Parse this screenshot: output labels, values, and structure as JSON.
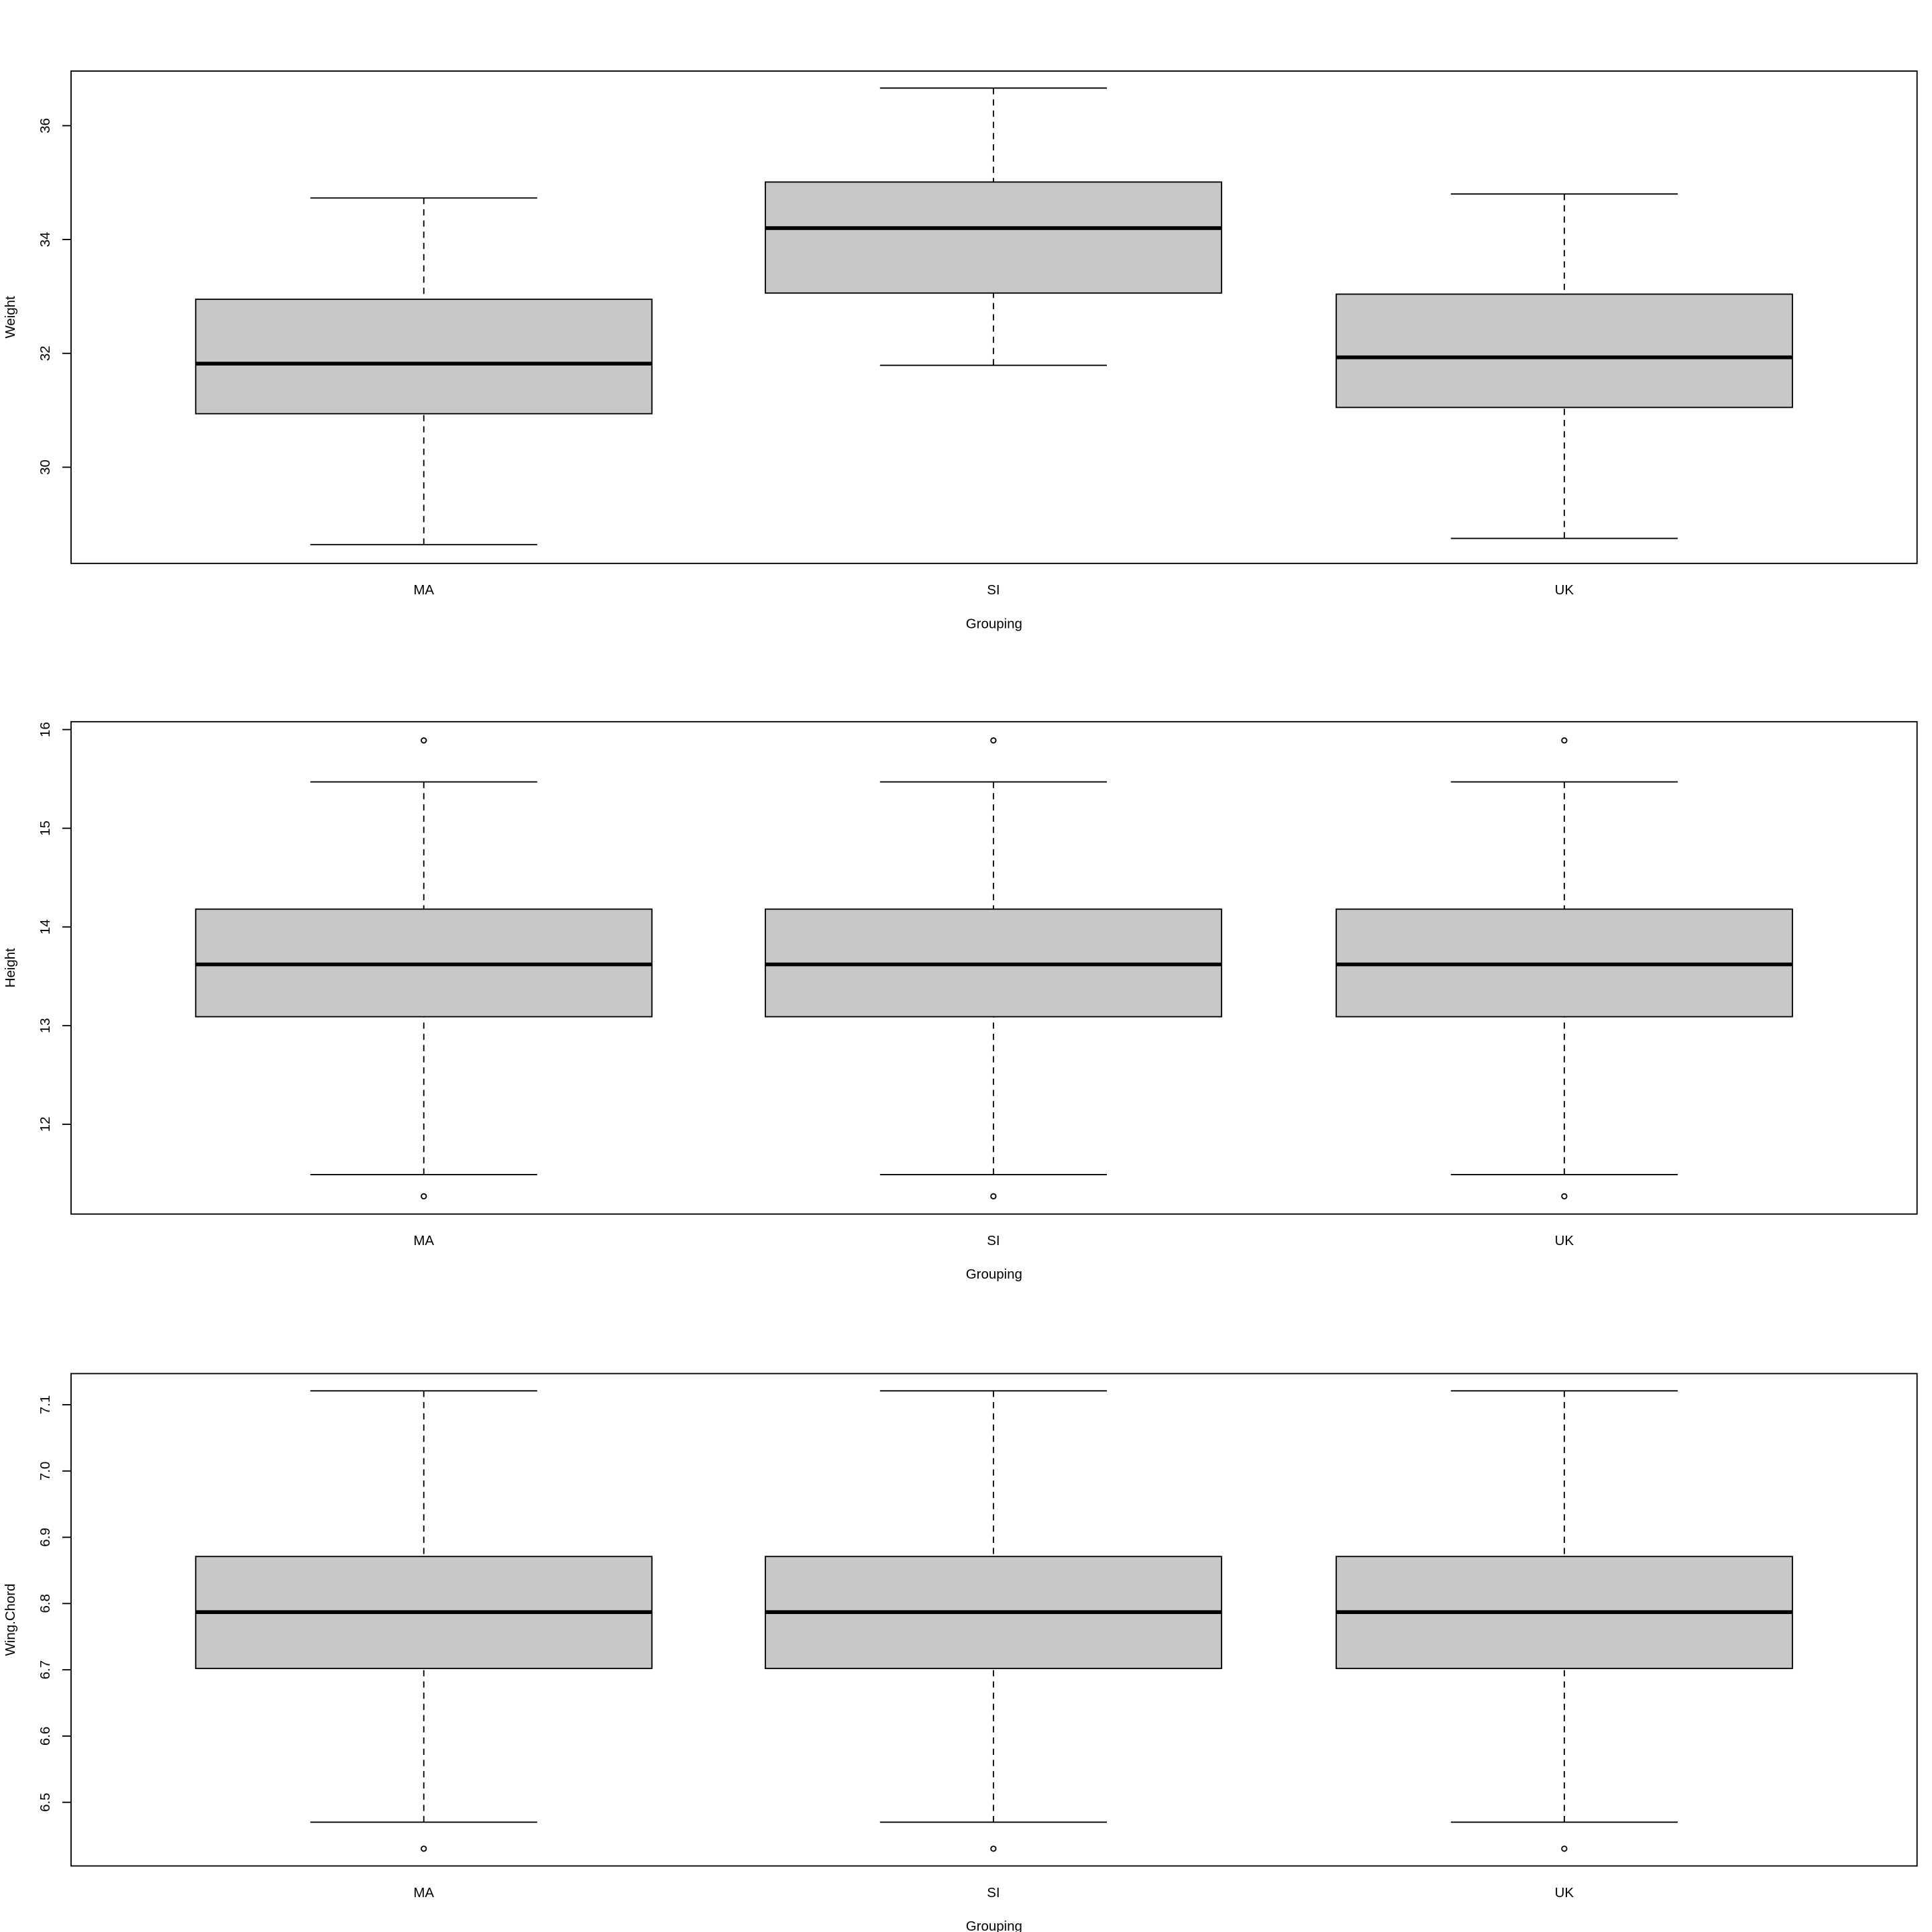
{
  "chart_data": [
    {
      "type": "box",
      "categories": [
        "MA",
        "SI",
        "UK"
      ],
      "xlabel": "Grouping",
      "ylabel": "Weight",
      "ylim": [
        28.31,
        36.96
      ],
      "yticks": [
        30,
        32,
        34,
        36
      ],
      "boxes": [
        {
          "min": 28.64,
          "q1": 30.94,
          "median": 31.82,
          "q3": 32.95,
          "max": 34.73,
          "outliers": []
        },
        {
          "min": 31.79,
          "q1": 33.06,
          "median": 34.2,
          "q3": 35.01,
          "max": 36.66,
          "outliers": []
        },
        {
          "min": 28.75,
          "q1": 31.05,
          "median": 31.93,
          "q3": 33.04,
          "max": 34.8,
          "outliers": []
        }
      ],
      "color": "#c8c8c8"
    },
    {
      "type": "box",
      "categories": [
        "MA",
        "SI",
        "UK"
      ],
      "xlabel": "Grouping",
      "ylabel": "Height",
      "ylim": [
        11.09,
        16.08
      ],
      "yticks": [
        12,
        13,
        14,
        15,
        16
      ],
      "boxes": [
        {
          "min": 11.49,
          "q1": 13.09,
          "median": 13.62,
          "q3": 14.18,
          "max": 15.47,
          "outliers": [
            15.89,
            11.27
          ]
        },
        {
          "min": 11.49,
          "q1": 13.09,
          "median": 13.62,
          "q3": 14.18,
          "max": 15.47,
          "outliers": [
            15.89,
            11.27
          ]
        },
        {
          "min": 11.49,
          "q1": 13.09,
          "median": 13.62,
          "q3": 14.18,
          "max": 15.47,
          "outliers": [
            15.89,
            11.27
          ]
        }
      ],
      "color": "#c8c8c8"
    },
    {
      "type": "box",
      "categories": [
        "MA",
        "SI",
        "UK"
      ],
      "xlabel": "Grouping",
      "ylabel": "Wing.Chord",
      "ylim": [
        6.404,
        7.147
      ],
      "yticks": [
        6.5,
        6.6,
        6.7,
        6.8,
        6.9,
        {
          "value": 7,
          "label": "7.0"
        },
        7.1
      ],
      "boxes": [
        {
          "min": 6.47,
          "q1": 6.702,
          "median": 6.787,
          "q3": 6.871,
          "max": 7.121,
          "outliers": [
            6.43
          ]
        },
        {
          "min": 6.47,
          "q1": 6.702,
          "median": 6.787,
          "q3": 6.871,
          "max": 7.121,
          "outliers": [
            6.43
          ]
        },
        {
          "min": 6.47,
          "q1": 6.702,
          "median": 6.787,
          "q3": 6.871,
          "max": 7.121,
          "outliers": [
            6.43
          ]
        }
      ],
      "color": "#c8c8c8"
    }
  ]
}
